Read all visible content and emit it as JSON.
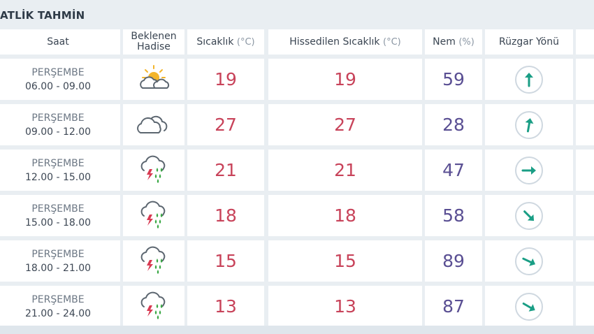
{
  "section": {
    "title": "ATLİK TAHMİN"
  },
  "header": {
    "saat": "Saat",
    "hadise_line1": "Beklenen",
    "hadise_line2": "Hadise",
    "sicaklik": "Sıcaklık",
    "sicaklik_unit": "(°C)",
    "hissedilen": "Hissedilen Sıcaklık",
    "hissedilen_unit": "(°C)",
    "nem": "Nem",
    "nem_unit": "(%)",
    "ruzgar": "Rüzgar Yönü"
  },
  "rows": [
    {
      "day": "PERŞEMBE",
      "range": "06.00 - 09.00",
      "icon": "partly-sunny-icon",
      "temp": "19",
      "feels": "19",
      "humidity": "59",
      "wind_deg": 0
    },
    {
      "day": "PERŞEMBE",
      "range": "09.00 - 12.00",
      "icon": "cloudy-icon",
      "temp": "27",
      "feels": "27",
      "humidity": "28",
      "wind_deg": 10
    },
    {
      "day": "PERŞEMBE",
      "range": "12.00 - 15.00",
      "icon": "thunderstorm-rain-icon",
      "temp": "21",
      "feels": "21",
      "humidity": "47",
      "wind_deg": 90
    },
    {
      "day": "PERŞEMBE",
      "range": "15.00 - 18.00",
      "icon": "thunderstorm-rain-icon",
      "temp": "18",
      "feels": "18",
      "humidity": "58",
      "wind_deg": 135
    },
    {
      "day": "PERŞEMBE",
      "range": "18.00 - 21.00",
      "icon": "thunderstorm-rain-icon",
      "temp": "15",
      "feels": "15",
      "humidity": "89",
      "wind_deg": 115
    },
    {
      "day": "PERŞEMBE",
      "range": "21.00 - 24.00",
      "icon": "thunderstorm-rain-icon",
      "temp": "13",
      "feels": "13",
      "humidity": "87",
      "wind_deg": 120
    }
  ],
  "colors": {
    "temp": "#c8435a",
    "humidity": "#5a4f93",
    "wind_arrow": "#1a9e85",
    "cloud_stroke": "#5c6670",
    "sun": "#f3b52b",
    "rain": "#3aa845",
    "lightning": "#d83a52"
  }
}
